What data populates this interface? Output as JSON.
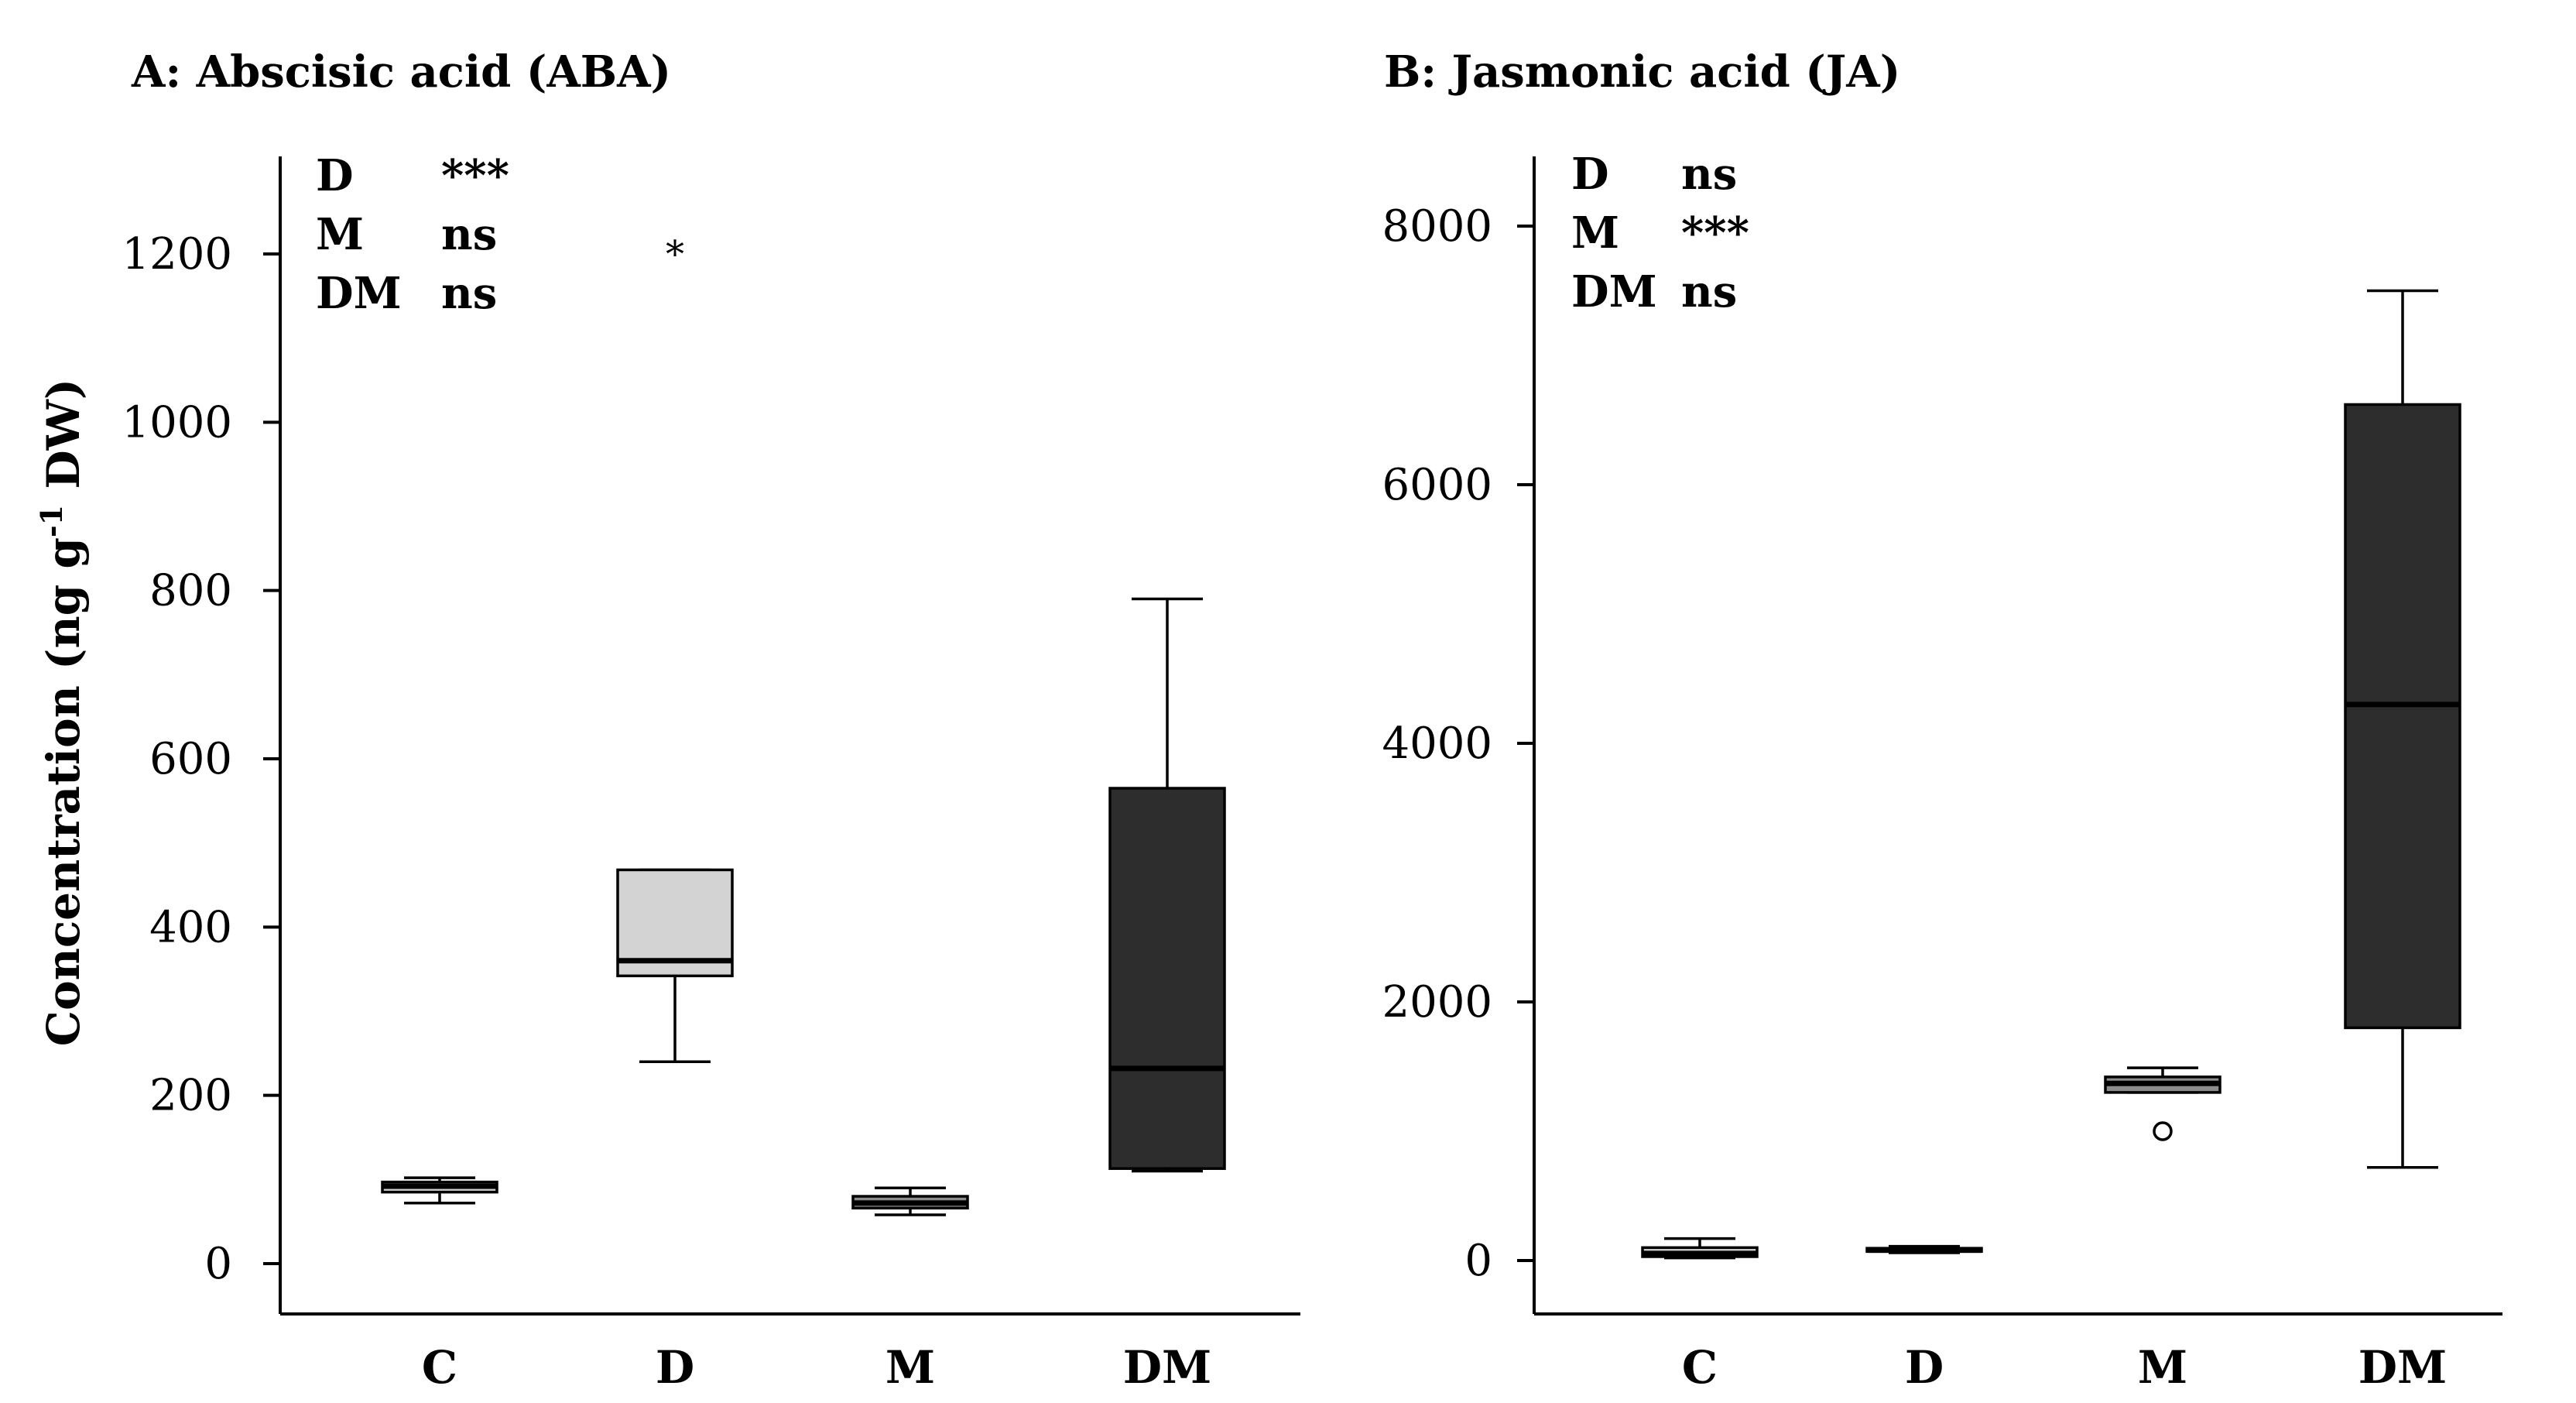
{
  "chart_data": [
    {
      "type": "box",
      "title": "A: Abscisic acid (ABA)",
      "ylabel_main": "Concentration (ng g",
      "ylabel_sup": "-1",
      "ylabel_tail": " DW)",
      "xlabel": "",
      "ylim": [
        -60,
        1320
      ],
      "yticks": [
        0,
        200,
        400,
        600,
        800,
        1000,
        1200
      ],
      "categories": [
        "C",
        "D",
        "M",
        "DM"
      ],
      "boxes": [
        {
          "category": "C",
          "min": 72,
          "q1": 85,
          "median": 92,
          "q3": 97,
          "max": 102,
          "fill": "#cfcfcf",
          "outliers": [],
          "extremes": []
        },
        {
          "category": "D",
          "min": 240,
          "q1": 342,
          "median": 360,
          "q3": 468,
          "max": 468,
          "fill": "#d3d3d3",
          "outliers": [],
          "extremes": [
            1205
          ]
        },
        {
          "category": "M",
          "min": 58,
          "q1": 66,
          "median": 72,
          "q3": 80,
          "max": 90,
          "fill": "#8c8c8c",
          "outliers": [],
          "extremes": []
        },
        {
          "category": "DM",
          "min": 110,
          "q1": 113,
          "median": 232,
          "q3": 565,
          "max": 790,
          "fill": "#2d2d2d",
          "outliers": [],
          "extremes": []
        }
      ],
      "extreme_symbol": "*",
      "significance": [
        {
          "factor": "D",
          "value": "***"
        },
        {
          "factor": "M",
          "value": "ns"
        },
        {
          "factor": "DM",
          "value": "ns"
        }
      ]
    },
    {
      "type": "box",
      "title": "B: Jasmonic acid (JA)",
      "xlabel": "",
      "ylim": [
        -400,
        8550
      ],
      "yticks": [
        0,
        2000,
        4000,
        6000,
        8000
      ],
      "categories": [
        "C",
        "D",
        "M",
        "DM"
      ],
      "boxes": [
        {
          "category": "C",
          "min": 20,
          "q1": 30,
          "median": 55,
          "q3": 100,
          "max": 170,
          "fill": "#cfcfcf",
          "outliers": [],
          "extremes": []
        },
        {
          "category": "D",
          "min": 60,
          "q1": 70,
          "median": 80,
          "q3": 95,
          "max": 110,
          "fill": "#d3d3d3",
          "outliers": [],
          "extremes": []
        },
        {
          "category": "M",
          "min": 1300,
          "q1": 1300,
          "median": 1370,
          "q3": 1420,
          "max": 1490,
          "fill": "#8c8c8c",
          "outliers": [
            1000
          ],
          "extremes": []
        },
        {
          "category": "DM",
          "min": 720,
          "q1": 1800,
          "median": 4300,
          "q3": 6620,
          "max": 7500,
          "fill": "#2d2d2d",
          "outliers": [],
          "extremes": []
        }
      ],
      "significance": [
        {
          "factor": "D",
          "value": "ns"
        },
        {
          "factor": "M",
          "value": "***"
        },
        {
          "factor": "DM",
          "value": "ns"
        }
      ]
    }
  ]
}
